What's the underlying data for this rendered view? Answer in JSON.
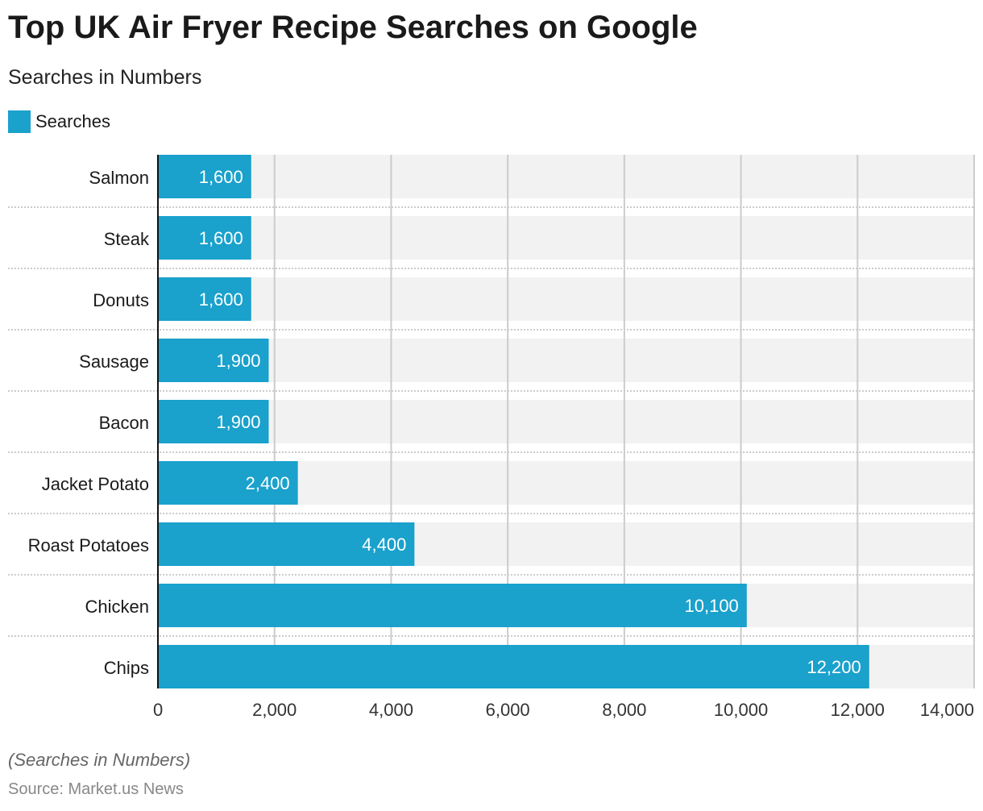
{
  "title": "Top UK Air Fryer Recipe Searches on Google",
  "subtitle": "Searches in Numbers",
  "footnote": "(Searches in Numbers)",
  "source": "Source: Market.us News",
  "colors": {
    "bar": "#1aa1cc",
    "band": "#f2f2f2",
    "grid": "#cccccc"
  },
  "chart_data": {
    "type": "bar",
    "orientation": "horizontal",
    "categories": [
      "Salmon",
      "Steak",
      "Donuts",
      "Sausage",
      "Bacon",
      "Jacket Potato",
      "Roast Potatoes",
      "Chicken",
      "Chips"
    ],
    "series": [
      {
        "name": "Searches",
        "values": [
          1600,
          1600,
          1600,
          1900,
          1900,
          2400,
          4400,
          10100,
          12200
        ]
      }
    ],
    "data_labels": [
      "1,600",
      "1,600",
      "1,600",
      "1,900",
      "1,900",
      "2,400",
      "4,400",
      "10,100",
      "12,200"
    ],
    "xlim": [
      0,
      14000
    ],
    "xticks": [
      0,
      2000,
      4000,
      6000,
      8000,
      10000,
      12000,
      14000
    ],
    "xtick_labels": [
      "0",
      "2,000",
      "4,000",
      "6,000",
      "8,000",
      "10,000",
      "12,000",
      "14,000"
    ],
    "grid": true,
    "legend": "top-left"
  }
}
